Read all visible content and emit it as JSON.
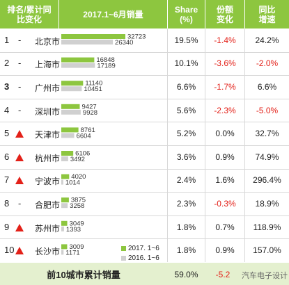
{
  "header": {
    "rank_change": "排名/累计同\n比变化",
    "period": "2017.1~6月销量",
    "share": "Share\n(%)",
    "share_change": "份额\n变化",
    "yoy": "同比\n增速"
  },
  "legend": {
    "series_2017": "2017. 1~6",
    "series_2016": "2016. 1~6"
  },
  "footer": {
    "title": "前10城市累计销量",
    "share": "59.0%",
    "share_change": "-5.2"
  },
  "watermark": "汽车电子设计",
  "colors": {
    "green": "#8dc63f",
    "grey": "#d0d0d0",
    "red": "#e32119",
    "header": "#8dc63f",
    "footer": "#e4f0cf"
  },
  "rows": [
    {
      "rank": "1",
      "trend": "-",
      "city": "北京市",
      "sales_2017": "32723",
      "sales_2016": "26340",
      "share": "19.5%",
      "share_change": "-1.4%",
      "yoy": "24.2%",
      "share_change_neg": true,
      "yoy_neg": false
    },
    {
      "rank": "2",
      "trend": "-",
      "city": "上海市",
      "sales_2017": "16848",
      "sales_2016": "17189",
      "share": "10.1%",
      "share_change": "-3.6%",
      "yoy": "-2.0%",
      "share_change_neg": true,
      "yoy_neg": true
    },
    {
      "rank": "3",
      "trend": "-",
      "city": "广州市",
      "sales_2017": "11140",
      "sales_2016": "10451",
      "share": "6.6%",
      "share_change": "-1.7%",
      "yoy": "6.6%",
      "share_change_neg": true,
      "yoy_neg": false,
      "bold_rank": true
    },
    {
      "rank": "4",
      "trend": "-",
      "city": "深圳市",
      "sales_2017": "9427",
      "sales_2016": "9928",
      "share": "5.6%",
      "share_change": "-2.3%",
      "yoy": "-5.0%",
      "share_change_neg": true,
      "yoy_neg": true
    },
    {
      "rank": "5",
      "trend": "up",
      "city": "天津市",
      "sales_2017": "8761",
      "sales_2016": "6604",
      "share": "5.2%",
      "share_change": "0.0%",
      "yoy": "32.7%",
      "share_change_neg": false,
      "yoy_neg": false
    },
    {
      "rank": "6",
      "trend": "up",
      "city": "杭州市",
      "sales_2017": "6106",
      "sales_2016": "3492",
      "share": "3.6%",
      "share_change": "0.9%",
      "yoy": "74.9%",
      "share_change_neg": false,
      "yoy_neg": false
    },
    {
      "rank": "7",
      "trend": "up",
      "city": "宁波市",
      "sales_2017": "4020",
      "sales_2016": "1014",
      "share": "2.4%",
      "share_change": "1.6%",
      "yoy": "296.4%",
      "share_change_neg": false,
      "yoy_neg": false
    },
    {
      "rank": "8",
      "trend": "-",
      "city": "合肥市",
      "sales_2017": "3875",
      "sales_2016": "3258",
      "share": "2.3%",
      "share_change": "-0.3%",
      "yoy": "18.9%",
      "share_change_neg": true,
      "yoy_neg": false
    },
    {
      "rank": "9",
      "trend": "up",
      "city": "苏州市",
      "sales_2017": "3049",
      "sales_2016": "1393",
      "share": "1.8%",
      "share_change": "0.7%",
      "yoy": "118.9%",
      "share_change_neg": false,
      "yoy_neg": false
    },
    {
      "rank": "10",
      "trend": "up",
      "city": "长沙市",
      "sales_2017": "3009",
      "sales_2016": "1171",
      "share": "1.8%",
      "share_change": "0.9%",
      "yoy": "157.0%",
      "share_change_neg": false,
      "yoy_neg": false
    }
  ],
  "chart_data": {
    "type": "bar",
    "categories": [
      "北京市",
      "上海市",
      "广州市",
      "深圳市",
      "天津市",
      "杭州市",
      "宁波市",
      "合肥市",
      "苏州市",
      "长沙市"
    ],
    "series": [
      {
        "name": "2017. 1~6",
        "values": [
          32723,
          16848,
          11140,
          9427,
          8761,
          6106,
          4020,
          3875,
          3049,
          3009
        ]
      },
      {
        "name": "2016. 1~6",
        "values": [
          26340,
          17189,
          10451,
          9928,
          6604,
          3492,
          1014,
          3258,
          1393,
          1171
        ]
      }
    ],
    "title": "2017.1~6月销量",
    "xlabel": "",
    "ylabel": "",
    "orientation": "horizontal",
    "xlim": [
      0,
      32723
    ],
    "grid": false,
    "legend": "bottom-right"
  }
}
